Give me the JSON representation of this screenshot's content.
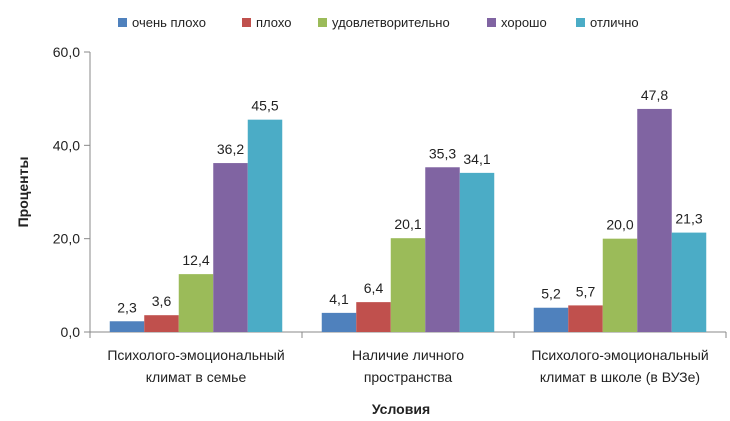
{
  "chart_data": {
    "type": "bar",
    "categories": [
      [
        "Психолого-эмоциональный",
        "климат в семье"
      ],
      [
        "Наличие личного",
        "пространства"
      ],
      [
        "Психолого-эмоциональный",
        "климат в школе (в ВУЗе)"
      ]
    ],
    "series": [
      {
        "name": "очень плохо",
        "color": "#4F81BD",
        "values": [
          2.3,
          4.1,
          5.2
        ],
        "labels": [
          "2,3",
          "4,1",
          "5,2"
        ]
      },
      {
        "name": "плохо",
        "color": "#C0504D",
        "values": [
          3.6,
          6.4,
          5.7
        ],
        "labels": [
          "3,6",
          "6,4",
          "5,7"
        ]
      },
      {
        "name": "удовлетворительно",
        "color": "#9BBB59",
        "values": [
          12.4,
          20.1,
          20.0
        ],
        "labels": [
          "12,4",
          "20,1",
          "20,0"
        ]
      },
      {
        "name": "хорошо",
        "color": "#8064A2",
        "values": [
          36.2,
          35.3,
          47.8
        ],
        "labels": [
          "36,2",
          "35,3",
          "47,8"
        ]
      },
      {
        "name": "отлично",
        "color": "#4BACC6",
        "values": [
          45.5,
          34.1,
          21.3
        ],
        "labels": [
          "45,5",
          "34,1",
          "21,3"
        ]
      }
    ],
    "xlabel": "Условия",
    "ylabel": "Проценты",
    "ylim": [
      0,
      60
    ],
    "yticks": [
      0,
      20,
      40,
      60
    ],
    "ytick_labels": [
      "0,0",
      "20,0",
      "40,0",
      "60,0"
    ],
    "grid": false,
    "legend_position": "top"
  }
}
